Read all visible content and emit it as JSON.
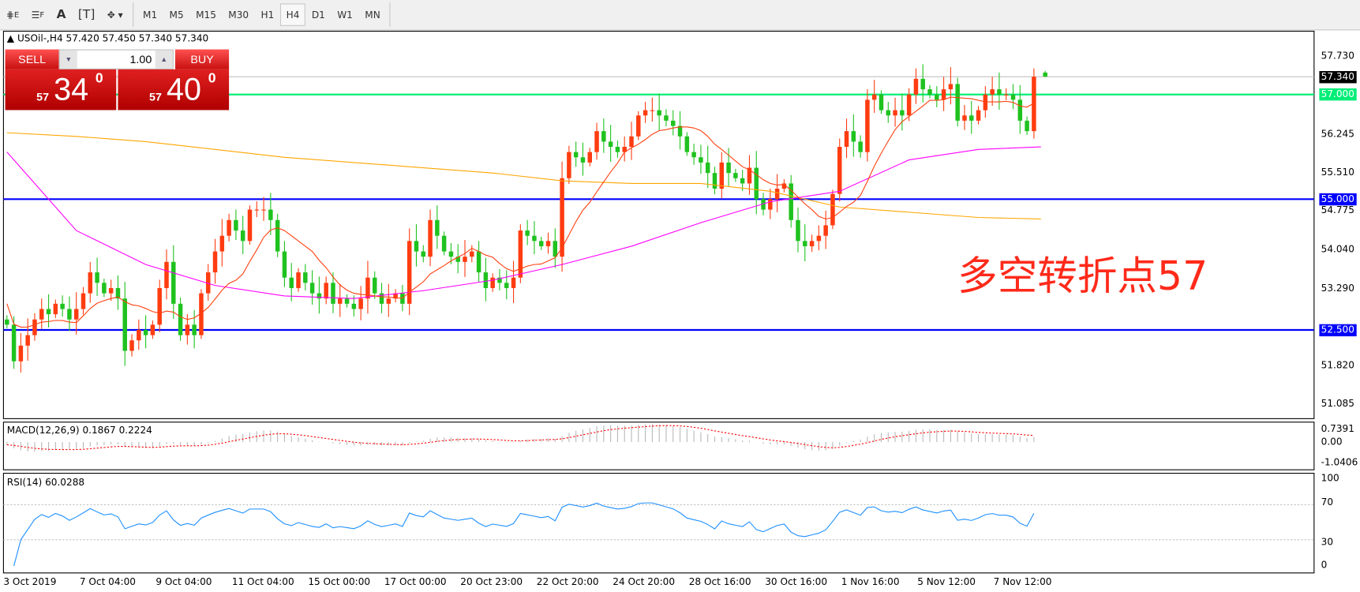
{
  "toolbar": {
    "tools": [
      "crosshair-e",
      "grid-f",
      "A",
      "T",
      "shapes"
    ],
    "timeframes": [
      "M1",
      "M5",
      "M15",
      "M30",
      "H1",
      "H4",
      "D1",
      "W1",
      "MN"
    ],
    "active": "H4"
  },
  "header": {
    "arrow": "▲",
    "text": "USOil-,H4  57.420 57.450 57.340 57.340"
  },
  "trade": {
    "sell_label": "SELL",
    "buy_label": "BUY",
    "lot": "1.00",
    "sell_small": "57",
    "sell_big": "34",
    "sell_sup": "0",
    "buy_small": "57",
    "buy_big": "40",
    "buy_sup": "0"
  },
  "annotation": "多空转折点57",
  "colors": {
    "up": "#ff3c10",
    "down": "#1fc21f",
    "ma_fast": "#ff4010",
    "ma_mid": "#ff00ff",
    "ma_slow": "#ffa500",
    "support": "#0000ff",
    "pivot": "#00ee77",
    "rsi": "#1e90ff",
    "macd_signal": "#ff0000"
  },
  "chart_data": {
    "type": "candlestick",
    "symbol": "USOil-",
    "timeframe": "H4",
    "last_bar": {
      "open": 57.42,
      "high": 57.45,
      "low": 57.34,
      "close": 57.34
    },
    "closes": [
      52.6,
      51.9,
      52.2,
      52.4,
      52.7,
      52.9,
      52.8,
      53.0,
      52.9,
      52.7,
      52.9,
      53.2,
      53.6,
      53.4,
      53.2,
      53.3,
      53.1,
      52.1,
      52.3,
      52.5,
      52.4,
      52.6,
      53.3,
      53.8,
      53.0,
      52.4,
      52.6,
      52.4,
      53.2,
      53.6,
      54.0,
      54.3,
      54.6,
      54.4,
      54.2,
      54.8,
      54.8,
      54.8,
      54.6,
      54.0,
      53.5,
      53.3,
      53.6,
      53.4,
      53.2,
      53.1,
      53.4,
      53.0,
      53.1,
      53.0,
      52.9,
      53.1,
      53.5,
      53.2,
      53.0,
      53.1,
      53.2,
      53.0,
      54.2,
      54.0,
      53.9,
      54.6,
      54.3,
      54.0,
      53.9,
      53.8,
      53.9,
      54.0,
      53.6,
      53.3,
      53.5,
      53.4,
      53.3,
      53.5,
      54.4,
      54.3,
      54.2,
      54.1,
      54.2,
      53.9,
      55.4,
      55.9,
      55.8,
      55.7,
      55.9,
      56.3,
      56.1,
      56.0,
      55.9,
      56.0,
      56.2,
      56.6,
      56.7,
      56.7,
      56.6,
      56.5,
      56.4,
      56.2,
      55.9,
      55.8,
      55.7,
      55.5,
      55.2,
      55.7,
      55.5,
      55.4,
      55.3,
      55.6,
      55.0,
      54.8,
      55.0,
      55.2,
      55.3,
      54.6,
      54.2,
      54.1,
      54.2,
      54.3,
      54.5,
      55.1,
      56.0,
      56.3,
      56.1,
      55.9,
      56.9,
      57.0,
      56.7,
      56.6,
      56.7,
      56.6,
      57.0,
      57.3,
      57.1,
      57.0,
      56.9,
      57.1,
      57.2,
      56.5,
      56.6,
      56.5,
      56.7,
      57.0,
      57.1,
      57.0,
      57.0,
      56.9,
      56.5,
      56.3,
      57.34
    ],
    "ma_slow_every10": [
      56.27,
      56.2,
      56.1,
      55.95,
      55.8,
      55.7,
      55.6,
      55.5,
      55.35,
      55.3,
      55.3,
      55.15,
      54.85,
      54.75,
      54.65,
      54.62
    ],
    "ma_mid_every10": [
      55.9,
      54.4,
      53.75,
      53.35,
      53.15,
      53.1,
      53.25,
      53.45,
      53.75,
      54.1,
      54.55,
      54.95,
      55.15,
      55.75,
      55.95,
      56.0
    ],
    "hlines": [
      {
        "price": 57.0,
        "label": "57.000",
        "color": "pivot"
      },
      {
        "price": 55.0,
        "label": "55.000",
        "color": "support"
      },
      {
        "price": 52.5,
        "label": "52.500",
        "color": "support"
      }
    ],
    "bid": {
      "price": 57.34,
      "label": "57.340"
    },
    "y_ticks": [
      "57.730",
      "56.245",
      "55.510",
      "54.775",
      "54.040",
      "53.290",
      "51.820",
      "51.085"
    ],
    "y_range": [
      50.6,
      58.2
    ],
    "x_ticks": [
      "3 Oct 2019",
      "7 Oct 04:00",
      "9 Oct 04:00",
      "11 Oct 04:00",
      "15 Oct 00:00",
      "17 Oct 00:00",
      "20 Oct 23:00",
      "22 Oct 20:00",
      "24 Oct 20:00",
      "28 Oct 16:00",
      "30 Oct 16:00",
      "1 Nov 16:00",
      "5 Nov 12:00",
      "7 Nov 12:00"
    ],
    "macd": {
      "label": "MACD(12,26,9) 0.1867 0.2224",
      "ticks": [
        "0.7391",
        "0.00",
        "-1.0406"
      ]
    },
    "rsi": {
      "label": "RSI(14) 60.0288",
      "ticks": [
        "100",
        "70",
        "30",
        "0"
      ],
      "levels": [
        70,
        30
      ]
    }
  }
}
